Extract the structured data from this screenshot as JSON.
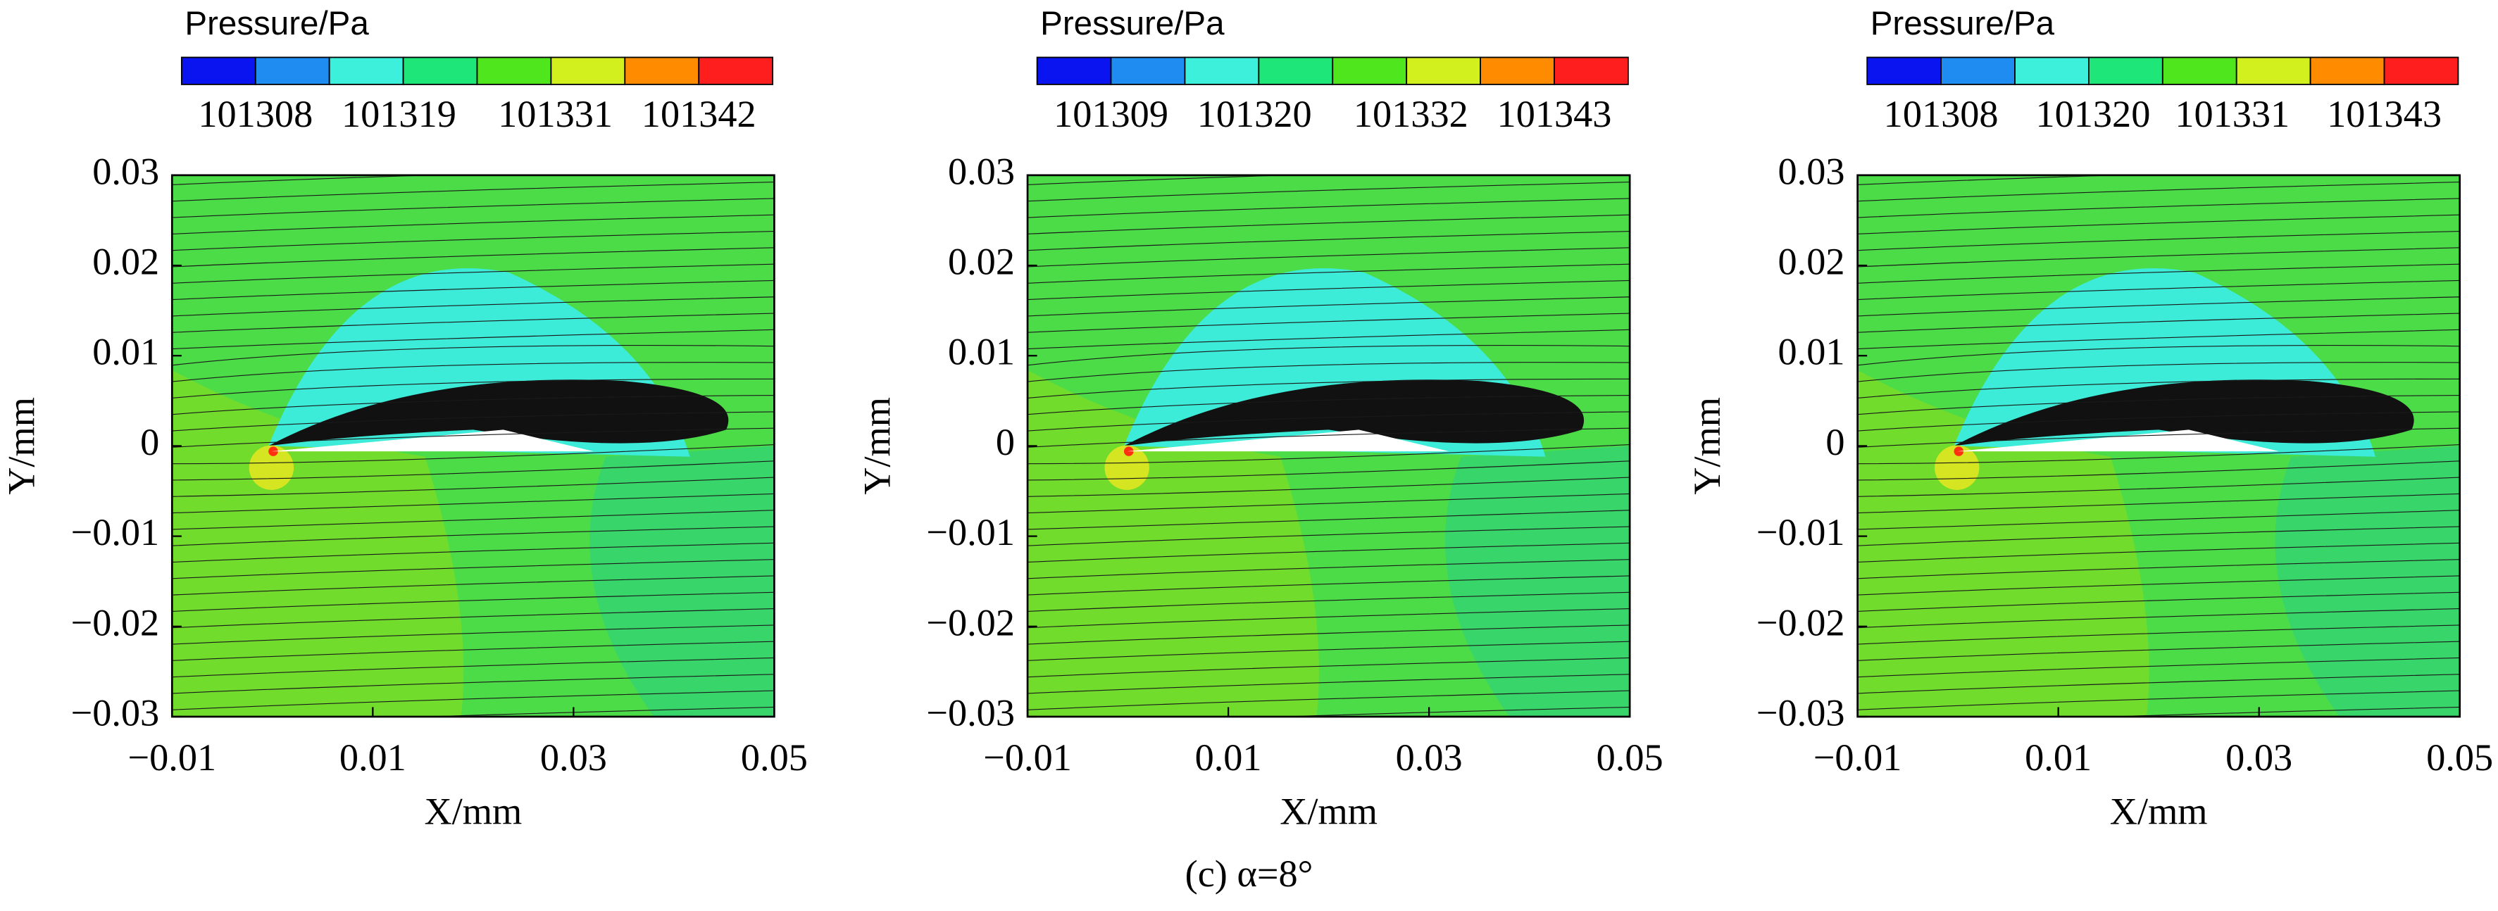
{
  "caption": "(c) α=8°",
  "chart_data": [
    {
      "type": "contour",
      "colorbar_title": "Pressure/Pa",
      "colorbar_colors": [
        "#0a14f0",
        "#1e8cf0",
        "#3cf0dc",
        "#1ee678",
        "#50e61e",
        "#d2f01e",
        "#ff8c00",
        "#ff1e1e"
      ],
      "colorbar_ticks": [
        101308,
        101319,
        101331,
        101342
      ],
      "xlabel": "X/mm",
      "ylabel": "Y/mm",
      "xlim": [
        -0.01,
        0.05
      ],
      "xticks": [
        {
          "value": -0.01,
          "label": "−0.01"
        },
        0.01,
        0.03,
        0.05
      ],
      "ylim": [
        -0.03,
        0.03
      ],
      "yticks": [
        {
          "value": -0.03,
          "label": "−0.03"
        },
        {
          "value": -0.02,
          "label": "−0.02"
        },
        {
          "value": -0.01,
          "label": "−0.01"
        },
        0,
        0.01,
        0.02,
        0.03
      ]
    },
    {
      "type": "contour",
      "colorbar_title": "Pressure/Pa",
      "colorbar_colors": [
        "#0a14f0",
        "#1e8cf0",
        "#3cf0dc",
        "#1ee678",
        "#50e61e",
        "#d2f01e",
        "#ff8c00",
        "#ff1e1e"
      ],
      "colorbar_ticks": [
        101309,
        101320,
        101332,
        101343
      ],
      "xlabel": "X/mm",
      "ylabel": "Y/mm",
      "xlim": [
        -0.01,
        0.05
      ],
      "xticks": [
        {
          "value": -0.01,
          "label": "−0.01"
        },
        0.01,
        0.03,
        0.05
      ],
      "ylim": [
        -0.03,
        0.03
      ],
      "yticks": [
        {
          "value": -0.03,
          "label": "−0.03"
        },
        {
          "value": -0.02,
          "label": "−0.02"
        },
        {
          "value": -0.01,
          "label": "−0.01"
        },
        0,
        0.01,
        0.02,
        0.03
      ]
    },
    {
      "type": "contour",
      "colorbar_title": "Pressure/Pa",
      "colorbar_colors": [
        "#0a14f0",
        "#1e8cf0",
        "#3cf0dc",
        "#1ee678",
        "#50e61e",
        "#d2f01e",
        "#ff8c00",
        "#ff1e1e"
      ],
      "colorbar_ticks": [
        101308,
        101320,
        101331,
        101343
      ],
      "xlabel": "X/mm",
      "ylabel": "Y/mm",
      "xlim": [
        -0.01,
        0.05
      ],
      "xticks": [
        {
          "value": -0.01,
          "label": "−0.01"
        },
        0.01,
        0.03,
        0.05
      ],
      "ylim": [
        -0.03,
        0.03
      ],
      "yticks": [
        {
          "value": -0.03,
          "label": "−0.03"
        },
        {
          "value": -0.02,
          "label": "−0.02"
        },
        {
          "value": -0.01,
          "label": "−0.01"
        },
        0,
        0.01,
        0.02,
        0.03
      ]
    }
  ]
}
